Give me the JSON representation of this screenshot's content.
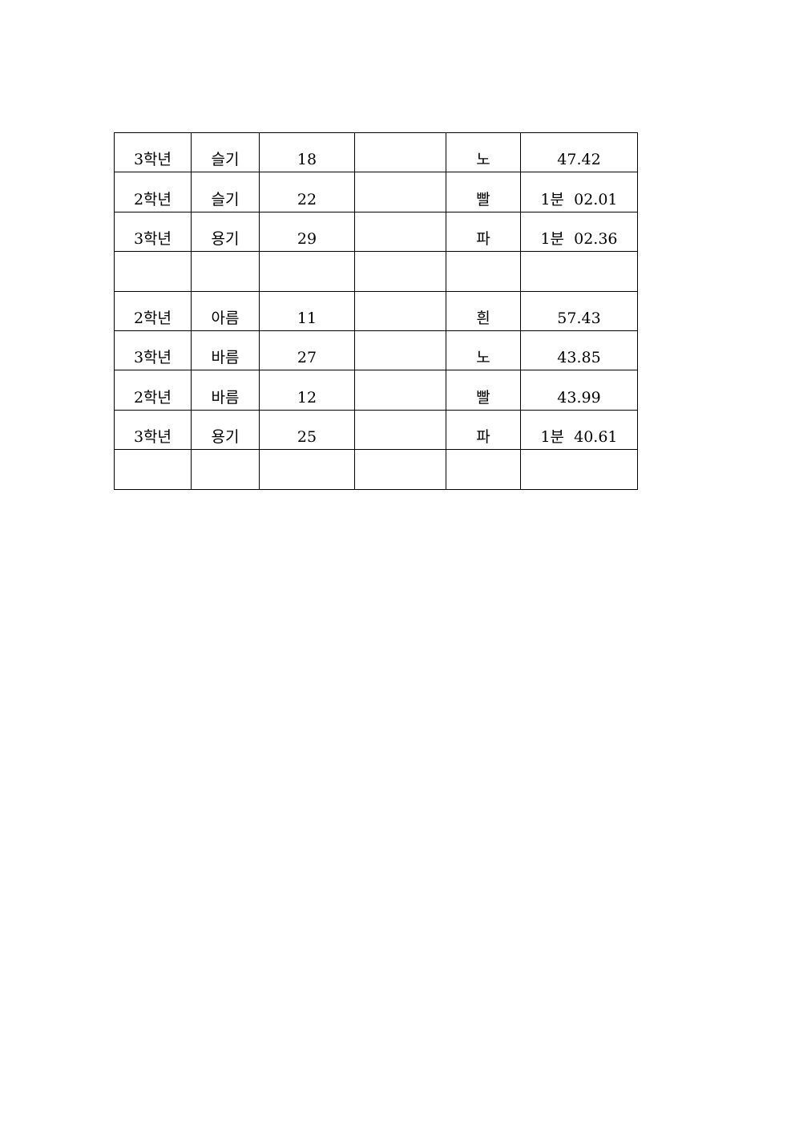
{
  "table": {
    "rows": [
      [
        "3학년",
        "슬기",
        "18",
        "",
        "노",
        "47.42"
      ],
      [
        "2학년",
        "슬기",
        "22",
        "",
        "빨",
        "1분  02.01"
      ],
      [
        "3학년",
        "용기",
        "29",
        "",
        "파",
        "1분  02.36"
      ],
      [
        "",
        "",
        "",
        "",
        "",
        ""
      ],
      [
        "2학년",
        "아름",
        "11",
        "",
        "흰",
        "57.43"
      ],
      [
        "3학년",
        "바름",
        "27",
        "",
        "노",
        "43.85"
      ],
      [
        "2학년",
        "바름",
        "12",
        "",
        "빨",
        "43.99"
      ],
      [
        "3학년",
        "용기",
        "25",
        "",
        "파",
        "1분  40.61"
      ],
      [
        "",
        "",
        "",
        "",
        "",
        ""
      ]
    ]
  }
}
